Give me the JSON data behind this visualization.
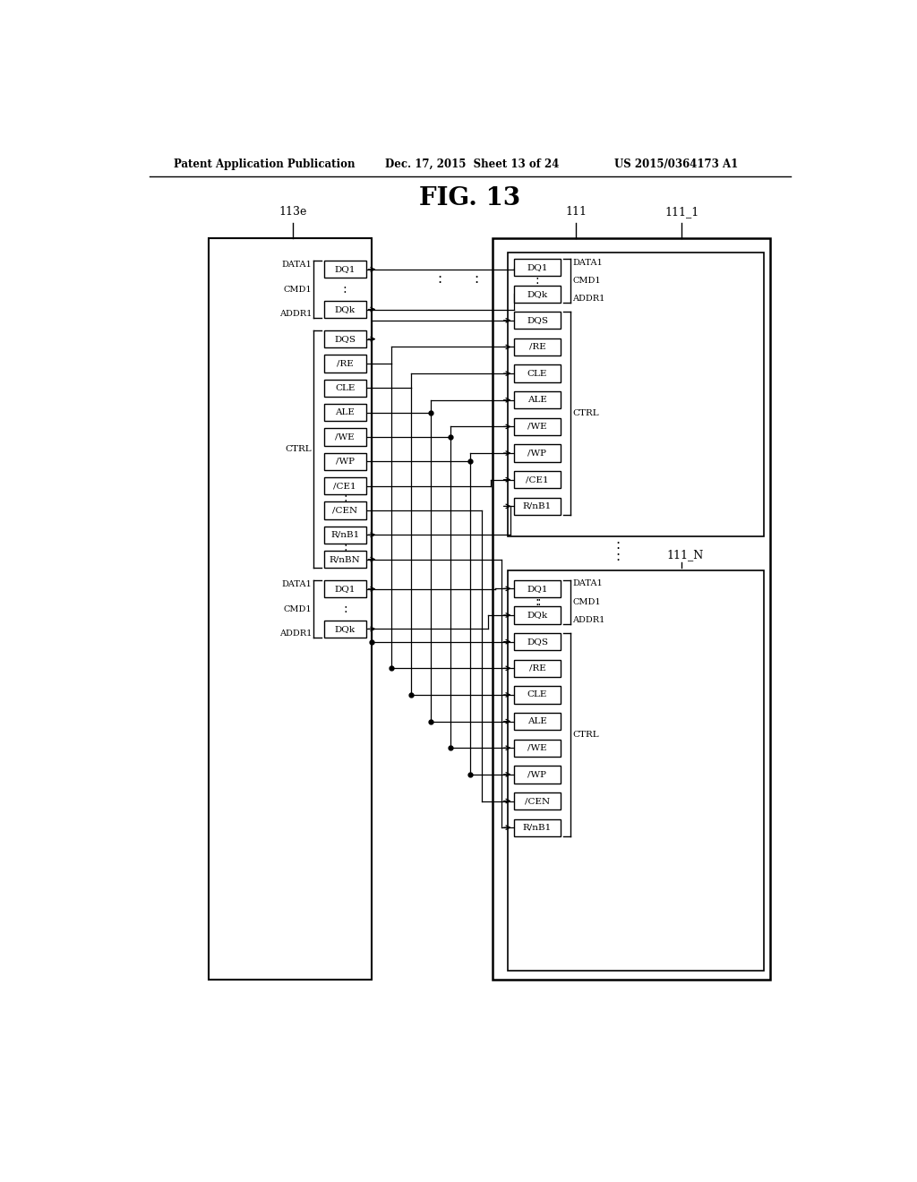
{
  "title": "FIG. 13",
  "header_left": "Patent Application Publication",
  "header_mid": "Dec. 17, 2015  Sheet 13 of 24",
  "header_right": "US 2015/0364173 A1",
  "bg_color": "#ffffff",
  "left_block_label": "113e",
  "right_block_label": "111",
  "right_subblock1_label": "111_1",
  "right_subblock2_label": "111_N",
  "left_boxes_top": [
    "DQ1",
    "DQk"
  ],
  "left_boxes_ctrl": [
    "DQS",
    "/RE",
    "CLE",
    "ALE",
    "/WE",
    "/WP",
    "/CE1",
    "/CEN",
    "R/nB1",
    "R/nBN"
  ],
  "left_boxes_bot": [
    "DQ1",
    "DQk"
  ],
  "right_top_boxes": [
    "DQ1",
    "DQk",
    "DQS",
    "/RE",
    "CLE",
    "ALE",
    "/WE",
    "/WP",
    "/CE1",
    "R/nB1"
  ],
  "right_bot_boxes": [
    "DQ1",
    "DQk",
    "DQS",
    "/RE",
    "CLE",
    "ALE",
    "/WE",
    "/WP",
    "/CEN",
    "R/nB1"
  ]
}
